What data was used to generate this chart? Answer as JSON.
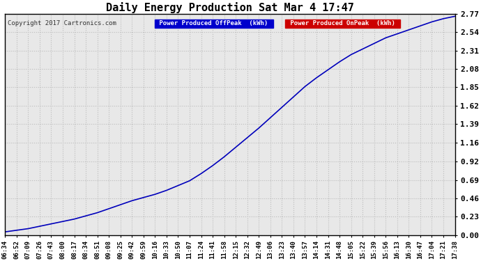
{
  "title": "Daily Energy Production Sat Mar 4 17:47",
  "copyright": "Copyright 2017 Cartronics.com",
  "legend1_label": "Power Produced OffPeak  (kWh)",
  "legend2_label": "Power Produced OnPeak  (kWh)",
  "legend1_bg": "#0000cc",
  "legend2_bg": "#cc0000",
  "line_color": "#0000bb",
  "bg_color": "#ffffff",
  "plot_bg_color": "#e8e8e8",
  "grid_color": "#bbbbbb",
  "yticks": [
    0.0,
    0.23,
    0.46,
    0.69,
    0.92,
    1.16,
    1.39,
    1.62,
    1.85,
    2.08,
    2.31,
    2.54,
    2.77
  ],
  "ylim": [
    0.0,
    2.77
  ],
  "xtick_labels": [
    "06:34",
    "06:52",
    "07:09",
    "07:26",
    "07:43",
    "08:00",
    "08:17",
    "08:34",
    "08:51",
    "09:08",
    "09:25",
    "09:42",
    "09:59",
    "10:16",
    "10:33",
    "10:50",
    "11:07",
    "11:24",
    "11:41",
    "11:58",
    "12:15",
    "12:32",
    "12:49",
    "13:06",
    "13:23",
    "13:40",
    "13:57",
    "14:14",
    "14:31",
    "14:48",
    "15:05",
    "15:22",
    "15:39",
    "15:56",
    "16:13",
    "16:30",
    "16:47",
    "17:04",
    "17:21",
    "17:38"
  ],
  "y_values": [
    0.04,
    0.06,
    0.08,
    0.11,
    0.14,
    0.17,
    0.2,
    0.24,
    0.28,
    0.33,
    0.38,
    0.43,
    0.47,
    0.51,
    0.56,
    0.62,
    0.68,
    0.77,
    0.87,
    0.98,
    1.1,
    1.22,
    1.34,
    1.47,
    1.6,
    1.73,
    1.86,
    1.97,
    2.07,
    2.17,
    2.26,
    2.33,
    2.4,
    2.47,
    2.52,
    2.57,
    2.62,
    2.67,
    2.71,
    2.74
  ]
}
